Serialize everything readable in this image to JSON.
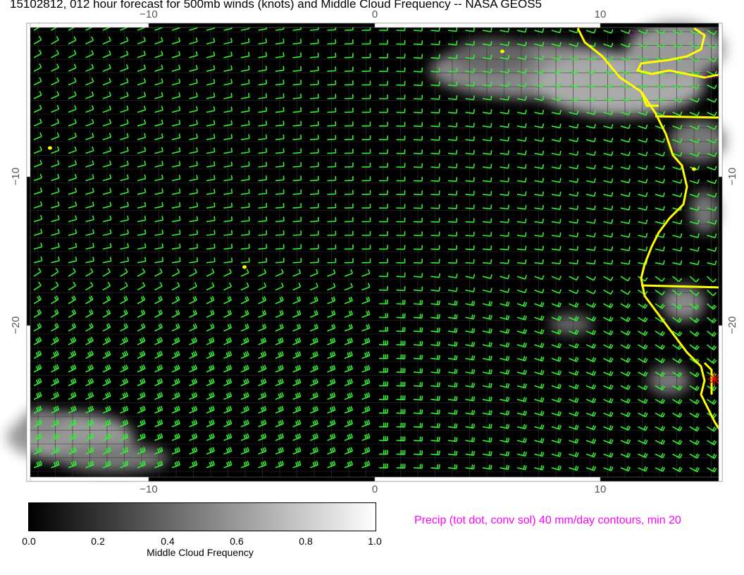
{
  "title": "15102812, 012 hour forecast for 500mb winds (knots) and Middle Cloud Frequency -- NASA GEOS5",
  "map": {
    "x_ticks": [
      "−10",
      "0",
      "10"
    ],
    "y_ticks": [
      "−10",
      "−20"
    ],
    "colors": {
      "wind_barbs": "#33ee33",
      "coastline": "#ffff00",
      "precip_contours": "#ff00ff",
      "marker": "#ff0000",
      "background": "#000000"
    }
  },
  "colorbar": {
    "ticks": [
      "0.0",
      "0.2",
      "0.4",
      "0.6",
      "0.8",
      "1.0"
    ],
    "label": "Middle Cloud Frequency",
    "range": [
      0,
      1
    ]
  },
  "precip_legend": "Precip (tot dot, conv sol) 40 mm/day contours, min 20"
}
